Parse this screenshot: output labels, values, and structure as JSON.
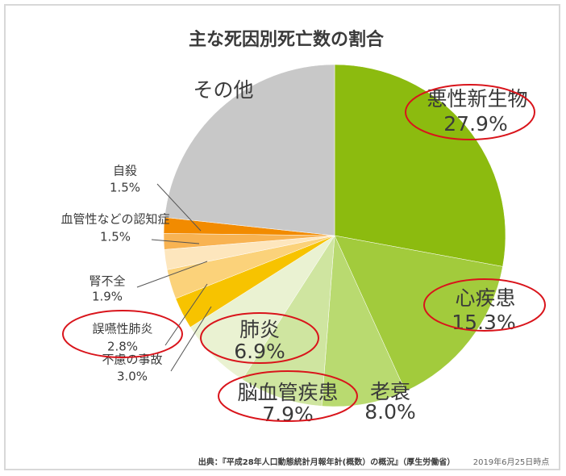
{
  "chart_data": {
    "type": "pie",
    "title": "主な死因別死亡数の割合",
    "categories": [
      "悪性新生物",
      "心疾患",
      "老衰",
      "脳血管疾患",
      "肺炎",
      "不慮の事故",
      "誤嚥性肺炎",
      "腎不全",
      "血管性などの認知症",
      "自殺",
      "その他"
    ],
    "values": [
      27.9,
      15.3,
      8.0,
      7.9,
      6.9,
      3.0,
      2.8,
      1.9,
      1.5,
      1.5,
      23.3
    ],
    "value_labels": [
      "27.9%",
      "15.3%",
      "8.0%",
      "7.9%",
      "6.9%",
      "3.0%",
      "2.8%",
      "1.9%",
      "1.5%",
      "1.5%",
      null
    ],
    "colors": [
      "#8cbb0f",
      "#a2cb3c",
      "#b9da70",
      "#cfe5a0",
      "#eaf2d2",
      "#f7c300",
      "#fbd27a",
      "#fde6bd",
      "#f8b352",
      "#f28b00",
      "#c8c8c8"
    ],
    "source": "出典：『平成28年人口動態統計月報年計(概数）の概況』（厚生労働省）",
    "date_note": "2019年6月25日時点"
  }
}
